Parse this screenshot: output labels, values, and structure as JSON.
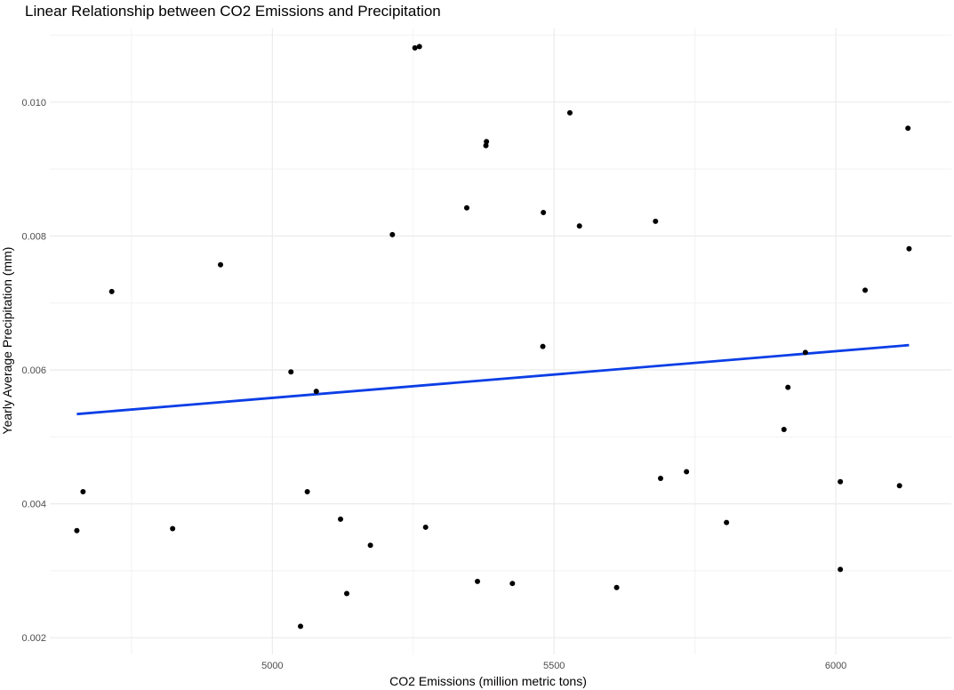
{
  "chart_data": {
    "type": "scatter",
    "title": "Linear Relationship between CO2 Emissions and Precipitation",
    "xlabel": "CO2 Emissions (million metric tons)",
    "ylabel": "Yearly Average Precipitation (mm)",
    "xlim": [
      4605,
      6205
    ],
    "ylim": [
      0.00175,
      0.0111
    ],
    "x_ticks": [
      5000,
      5500,
      6000
    ],
    "x_tick_labels": [
      "5000",
      "5500",
      "6000"
    ],
    "y_ticks": [
      0.002,
      0.004,
      0.006,
      0.008,
      0.01
    ],
    "y_tick_labels": [
      "0.002",
      "0.004",
      "0.006",
      "0.008",
      "0.010"
    ],
    "grid": true,
    "point_color": "#000000",
    "trend_color": "#0b3ee6",
    "points": [
      {
        "x": 4653,
        "y": 0.0036
      },
      {
        "x": 4664,
        "y": 0.00418
      },
      {
        "x": 4715,
        "y": 0.00717
      },
      {
        "x": 4823,
        "y": 0.00363
      },
      {
        "x": 4908,
        "y": 0.00757
      },
      {
        "x": 5033,
        "y": 0.00597
      },
      {
        "x": 5050,
        "y": 0.00217
      },
      {
        "x": 5062,
        "y": 0.00418
      },
      {
        "x": 5078,
        "y": 0.00568
      },
      {
        "x": 5121,
        "y": 0.00377
      },
      {
        "x": 5132,
        "y": 0.00266
      },
      {
        "x": 5174,
        "y": 0.00338
      },
      {
        "x": 5213,
        "y": 0.00802
      },
      {
        "x": 5253,
        "y": 0.01081
      },
      {
        "x": 5261,
        "y": 0.01083
      },
      {
        "x": 5272,
        "y": 0.00365
      },
      {
        "x": 5345,
        "y": 0.00842
      },
      {
        "x": 5364,
        "y": 0.00284
      },
      {
        "x": 5379,
        "y": 0.00935
      },
      {
        "x": 5380,
        "y": 0.00941
      },
      {
        "x": 5426,
        "y": 0.00281
      },
      {
        "x": 5480,
        "y": 0.00635
      },
      {
        "x": 5481,
        "y": 0.00835
      },
      {
        "x": 5528,
        "y": 0.00984
      },
      {
        "x": 5545,
        "y": 0.00815
      },
      {
        "x": 5611,
        "y": 0.00275
      },
      {
        "x": 5680,
        "y": 0.00822
      },
      {
        "x": 5689,
        "y": 0.00438
      },
      {
        "x": 5735,
        "y": 0.00448
      },
      {
        "x": 5806,
        "y": 0.00372
      },
      {
        "x": 5908,
        "y": 0.00511
      },
      {
        "x": 5915,
        "y": 0.00574
      },
      {
        "x": 5946,
        "y": 0.00626
      },
      {
        "x": 6008,
        "y": 0.00302
      },
      {
        "x": 6008,
        "y": 0.00433
      },
      {
        "x": 6052,
        "y": 0.00719
      },
      {
        "x": 6113,
        "y": 0.00427
      },
      {
        "x": 6128,
        "y": 0.00961
      },
      {
        "x": 6130,
        "y": 0.00781
      }
    ],
    "trend_line": {
      "x": [
        4653,
        6130
      ],
      "y": [
        0.00534,
        0.00637
      ]
    }
  }
}
